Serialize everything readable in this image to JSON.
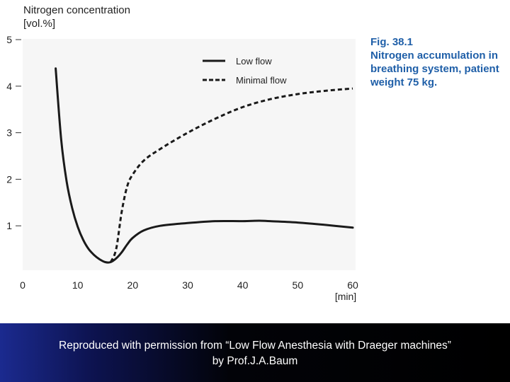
{
  "chart_data": {
    "type": "line",
    "ylabel_line1": "Nitrogen concentration",
    "ylabel_line2": "[vol.%]",
    "xlabel": "[min]",
    "x_ticks": [
      0,
      10,
      20,
      30,
      40,
      50,
      60
    ],
    "y_ticks": [
      1,
      2,
      3,
      4,
      5
    ],
    "xlim": [
      0,
      60
    ],
    "ylim": [
      0,
      5
    ],
    "grid": false,
    "legend_position": "top-center",
    "series": [
      {
        "name": "Low flow",
        "style": "solid",
        "x": [
          6,
          7,
          8,
          9,
          10,
          11,
          12,
          13,
          14,
          15,
          16,
          17,
          18,
          19,
          20,
          22,
          25,
          30,
          35,
          40,
          43,
          45,
          50,
          55,
          60
        ],
        "y": [
          4.38,
          2.85,
          1.95,
          1.38,
          0.98,
          0.7,
          0.5,
          0.37,
          0.28,
          0.22,
          0.22,
          0.3,
          0.43,
          0.6,
          0.74,
          0.9,
          1.0,
          1.06,
          1.1,
          1.1,
          1.11,
          1.1,
          1.07,
          1.02,
          0.96
        ]
      },
      {
        "name": "Minimal flow",
        "style": "dashed",
        "x": [
          16,
          17,
          18,
          19,
          20,
          22,
          25,
          30,
          35,
          40,
          45,
          50,
          55,
          60
        ],
        "y": [
          0.22,
          0.5,
          1.3,
          1.85,
          2.1,
          2.4,
          2.65,
          3.0,
          3.3,
          3.55,
          3.72,
          3.83,
          3.9,
          3.95
        ]
      }
    ]
  },
  "caption": {
    "line1": "Fig. 38.1",
    "line2": "Nitrogen accumulation in",
    "line3": "breathing system, patient",
    "line4": "weight 75 kg."
  },
  "footer": {
    "line1": "Reproduced with permission from “Low Flow Anesthesia with Draeger machines”",
    "line2": "by Prof.J.A.Baum"
  },
  "colors": {
    "caption": "#1f5fa8",
    "line": "#1a1a1a",
    "plot_background": "#f6f6f6",
    "footer_background_left": "#1b2a8f",
    "footer_background_right": "#000000"
  }
}
